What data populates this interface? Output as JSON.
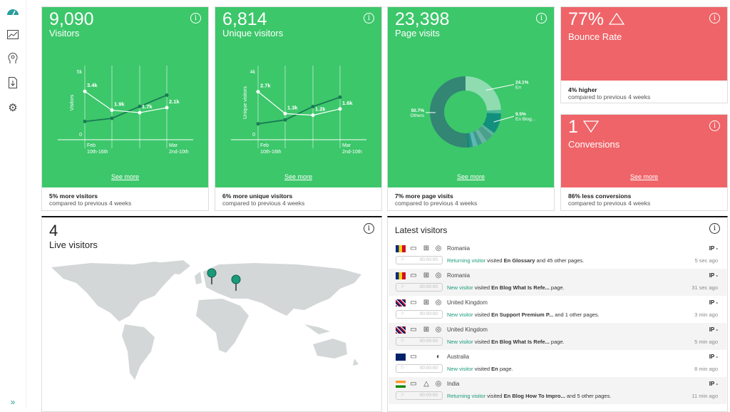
{
  "sidebar": {
    "items": [
      "dashboard-icon",
      "analytics-chart-icon",
      "visitor-profile-icon",
      "download-report-icon",
      "settings-icon"
    ],
    "expand": "»"
  },
  "cards": {
    "visitors": {
      "value": "9,090",
      "label": "Visitors",
      "see_more": "See more",
      "summary": "5% more visitors",
      "compare": "compared to previous 4 weeks"
    },
    "unique": {
      "value": "6,814",
      "label": "Unique visitors",
      "see_more": "See more",
      "summary": "6% more unique visitors",
      "compare": "compared to previous 4 weeks"
    },
    "pages": {
      "value": "23,398",
      "label": "Page visits",
      "see_more": "See more",
      "summary": "7% more page visits",
      "compare": "compared to previous 4 weeks"
    },
    "bounce": {
      "value": "77%",
      "label": "Bounce Rate",
      "trend": "up",
      "summary": "4% higher",
      "compare": "compared to previous 4 weeks"
    },
    "conversions": {
      "value": "1",
      "label": "Conversions",
      "trend": "down",
      "see_more": "See more",
      "summary": "86% less conversions",
      "compare": "compared to previous 4 weeks"
    }
  },
  "chart_data": [
    {
      "type": "line",
      "ylabel": "Visitors",
      "ylim": [
        0,
        5000
      ],
      "yticks": [
        "0",
        "5k"
      ],
      "xticks": [
        [
          "Feb",
          "10th-16th"
        ],
        [
          "Mar",
          "2nd-10th"
        ]
      ],
      "series": [
        {
          "values": [
            3400,
            1900,
            1700,
            2100
          ],
          "labels": [
            "3.4k",
            "1.9k",
            "1.7k",
            "2.1k"
          ],
          "color": "#ffffff"
        },
        {
          "values": [
            1000,
            1250,
            2200,
            3100
          ],
          "color": "#1a7a55"
        }
      ]
    },
    {
      "type": "line",
      "ylabel": "Unique visitors",
      "ylim": [
        0,
        4000
      ],
      "yticks": [
        "0",
        "4k"
      ],
      "xticks": [
        [
          "Feb",
          "10th-16th"
        ],
        [
          "Mar",
          "2nd-10th"
        ]
      ],
      "series": [
        {
          "values": [
            2700,
            1300,
            1200,
            1600
          ],
          "labels": [
            "2.7k",
            "1.3k",
            "1.2k",
            "1.6k"
          ],
          "color": "#ffffff"
        },
        {
          "values": [
            650,
            900,
            1750,
            2350
          ],
          "color": "#1a7a55"
        }
      ]
    },
    {
      "type": "pie",
      "donut": true,
      "slices": [
        {
          "label": "En",
          "pct": 24.1,
          "color": "#8fdcb1"
        },
        {
          "pct": 1.6,
          "color": "#4fb79a"
        },
        {
          "label": "En Blog...",
          "pct": 9.5,
          "color": "#12907d"
        },
        {
          "pct": 1.3,
          "color": "#5fb4a5"
        },
        {
          "pct": 3.5,
          "color": "#4aa08c"
        },
        {
          "pct": 2.3,
          "color": "#6ab3a7"
        },
        {
          "pct": 2.2,
          "color": "#3f9c8c"
        },
        {
          "pct": 2.2,
          "color": "#5cb8b8"
        },
        {
          "pct": 1.3,
          "color": "#2d8f86"
        },
        {
          "pct": 1.3,
          "color": "#168878"
        },
        {
          "label": "Others",
          "pct": 50.7,
          "color": "#338574"
        }
      ]
    }
  ],
  "live": {
    "count": "4",
    "label": "Live visitors"
  },
  "latest": {
    "title": "Latest visitors",
    "rows": [
      {
        "flag": "romania",
        "country": "Romania",
        "device": "desktop-icon",
        "os": "windows-icon",
        "browser": "chrome-icon",
        "time": "00:00:00",
        "type": "Returning visitor",
        "visited": "visited",
        "page": "En Glossary",
        "rest": "and 45 other pages.",
        "ip": "IP -",
        "ago": "5 sec ago"
      },
      {
        "flag": "romania",
        "country": "Romania",
        "device": "desktop-icon",
        "os": "windows-icon",
        "browser": "chrome-icon",
        "time": "00:00:00",
        "type": "New visitor",
        "visited": "visited",
        "page": "En Blog What Is Refe...",
        "rest": "page.",
        "ip": "IP -",
        "ago": "31 sec ago"
      },
      {
        "flag": "uk",
        "country": "United Kingdom",
        "device": "desktop-icon",
        "os": "windows-icon",
        "browser": "chrome-icon",
        "time": "00:00:00",
        "type": "New visitor",
        "visited": "visited",
        "page": "En Support Premium P...",
        "rest": "and 1 other pages.",
        "ip": "IP -",
        "ago": "3 min ago"
      },
      {
        "flag": "uk",
        "country": "United Kingdom",
        "device": "desktop-icon",
        "os": "windows-icon",
        "browser": "chrome-icon",
        "time": "00:00:00",
        "type": "New visitor",
        "visited": "visited",
        "page": "En Blog What Is Refe...",
        "rest": "page.",
        "ip": "IP -",
        "ago": "5 min ago"
      },
      {
        "flag": "australia",
        "country": "Australia",
        "device": "desktop-icon",
        "os": "apple-icon",
        "browser": "firefox-icon",
        "time": "00:00:00",
        "type": "New visitor",
        "visited": "visited",
        "page": "En",
        "rest": "page.",
        "ip": "IP -",
        "ago": "8 min ago"
      },
      {
        "flag": "india",
        "country": "India",
        "device": "desktop-icon",
        "os": "linux-icon",
        "browser": "chrome-icon",
        "time": "00:00:00",
        "type": "Returning visitor",
        "visited": "visited",
        "page": "En Blog How To Impro...",
        "rest": "and 5 other pages.",
        "ip": "IP -",
        "ago": "11 min ago"
      }
    ]
  },
  "colors": {
    "green": "#3cc76a",
    "red": "#ef6468",
    "accent": "#1a9a7a"
  }
}
